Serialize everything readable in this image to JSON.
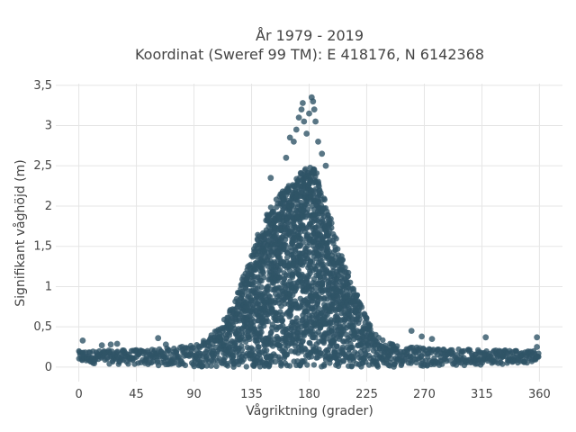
{
  "chart_data": {
    "type": "scatter",
    "title_lines": [
      "År 1979 - 2019",
      "Koordinat (Sweref 99 TM): E 418176, N 6142368"
    ],
    "xlabel": "Vågriktning (grader)",
    "ylabel": "Signifikant våghöjd (m)",
    "xlim": [
      -18,
      378
    ],
    "ylim": [
      -0.18,
      3.52
    ],
    "xticks": [
      {
        "value": 0,
        "label": "0"
      },
      {
        "value": 45,
        "label": "45"
      },
      {
        "value": 90,
        "label": "90"
      },
      {
        "value": 135,
        "label": "135"
      },
      {
        "value": 180,
        "label": "180"
      },
      {
        "value": 225,
        "label": "225"
      },
      {
        "value": 270,
        "label": "270"
      },
      {
        "value": 315,
        "label": "315"
      },
      {
        "value": 360,
        "label": "360"
      }
    ],
    "yticks": [
      {
        "value": 0,
        "label": "0"
      },
      {
        "value": 0.5,
        "label": "0,5"
      },
      {
        "value": 1,
        "label": "1"
      },
      {
        "value": 1.5,
        "label": "1,5"
      },
      {
        "value": 2,
        "label": "2"
      },
      {
        "value": 2.5,
        "label": "2,5"
      },
      {
        "value": 3,
        "label": "3"
      },
      {
        "value": 3.5,
        "label": "3,5"
      }
    ],
    "grid": true,
    "marker_color": "#2f5467",
    "marker_opacity": 0.8,
    "envelope": {
      "description": "upper and lower bounds of the dense point cloud by direction",
      "upper": [
        [
          0,
          0.2
        ],
        [
          60,
          0.22
        ],
        [
          90,
          0.28
        ],
        [
          100,
          0.35
        ],
        [
          110,
          0.5
        ],
        [
          120,
          0.8
        ],
        [
          130,
          1.2
        ],
        [
          140,
          1.65
        ],
        [
          150,
          2.0
        ],
        [
          160,
          2.2
        ],
        [
          170,
          2.35
        ],
        [
          175,
          2.45
        ],
        [
          180,
          2.5
        ],
        [
          185,
          2.45
        ],
        [
          190,
          2.2
        ],
        [
          195,
          1.95
        ],
        [
          200,
          1.65
        ],
        [
          210,
          1.2
        ],
        [
          220,
          0.8
        ],
        [
          230,
          0.45
        ],
        [
          240,
          0.3
        ],
        [
          260,
          0.25
        ],
        [
          300,
          0.22
        ],
        [
          360,
          0.2
        ]
      ],
      "lower": [
        [
          0,
          0.05
        ],
        [
          100,
          0.0
        ],
        [
          260,
          0.0
        ],
        [
          360,
          0.05
        ]
      ]
    },
    "outliers": [
      {
        "x": 3,
        "y": 0.33
      },
      {
        "x": 18,
        "y": 0.27
      },
      {
        "x": 25,
        "y": 0.28
      },
      {
        "x": 30,
        "y": 0.29
      },
      {
        "x": 62,
        "y": 0.36
      },
      {
        "x": 68,
        "y": 0.28
      },
      {
        "x": 150,
        "y": 2.35
      },
      {
        "x": 162,
        "y": 2.6
      },
      {
        "x": 165,
        "y": 2.85
      },
      {
        "x": 168,
        "y": 2.8
      },
      {
        "x": 170,
        "y": 2.95
      },
      {
        "x": 172,
        "y": 3.1
      },
      {
        "x": 174,
        "y": 3.2
      },
      {
        "x": 175,
        "y": 3.28
      },
      {
        "x": 176,
        "y": 3.05
      },
      {
        "x": 178,
        "y": 2.9
      },
      {
        "x": 180,
        "y": 3.15
      },
      {
        "x": 182,
        "y": 3.35
      },
      {
        "x": 183,
        "y": 3.3
      },
      {
        "x": 184,
        "y": 3.2
      },
      {
        "x": 185,
        "y": 3.05
      },
      {
        "x": 187,
        "y": 2.8
      },
      {
        "x": 190,
        "y": 2.65
      },
      {
        "x": 193,
        "y": 2.5
      },
      {
        "x": 260,
        "y": 0.45
      },
      {
        "x": 268,
        "y": 0.38
      },
      {
        "x": 276,
        "y": 0.35
      },
      {
        "x": 318,
        "y": 0.37
      },
      {
        "x": 358,
        "y": 0.37
      },
      {
        "x": 358,
        "y": 0.25
      }
    ]
  }
}
